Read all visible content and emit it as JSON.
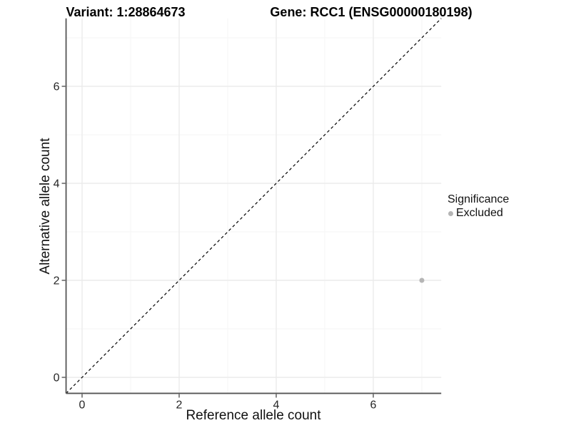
{
  "figure": {
    "title_variant": "Variant: 1:28864673",
    "title_gene": "Gene: RCC1 (ENSG00000180198)"
  },
  "legend": {
    "title": "Significance",
    "items": [
      {
        "label": "Excluded",
        "color": "#b5b5b5"
      }
    ]
  },
  "chart_data": {
    "type": "scatter",
    "title": "Variant: 1:28864673    Gene: RCC1 (ENSG00000180198)",
    "xlabel": "Reference allele count",
    "ylabel": "Alternative allele count",
    "xlim": [
      -0.33,
      7.4
    ],
    "ylim": [
      -0.33,
      7.4
    ],
    "x_major_ticks": [
      0,
      2,
      4,
      6
    ],
    "y_major_ticks": [
      0,
      2,
      4,
      6
    ],
    "x_minor_gridlines": [
      1,
      3,
      5,
      7
    ],
    "y_minor_gridlines": [
      1,
      3,
      5,
      7
    ],
    "grid": "on",
    "legend_position": "right-middle",
    "series": [
      {
        "name": "Excluded",
        "color": "#b5b5b5",
        "points": [
          {
            "x": 7,
            "y": 2
          }
        ]
      }
    ],
    "reference_line": {
      "kind": "identity y=x",
      "style": "dashed",
      "color": "#000000"
    }
  },
  "colors": {
    "background": "#ffffff",
    "grid_major": "#ebebeb",
    "grid_minor": "#f5f5f5",
    "axis_line": "#555555",
    "tick_mark": "#555555",
    "tick_text": "#262626",
    "point_excluded": "#b5b5b5",
    "reference_line": "#000000"
  }
}
